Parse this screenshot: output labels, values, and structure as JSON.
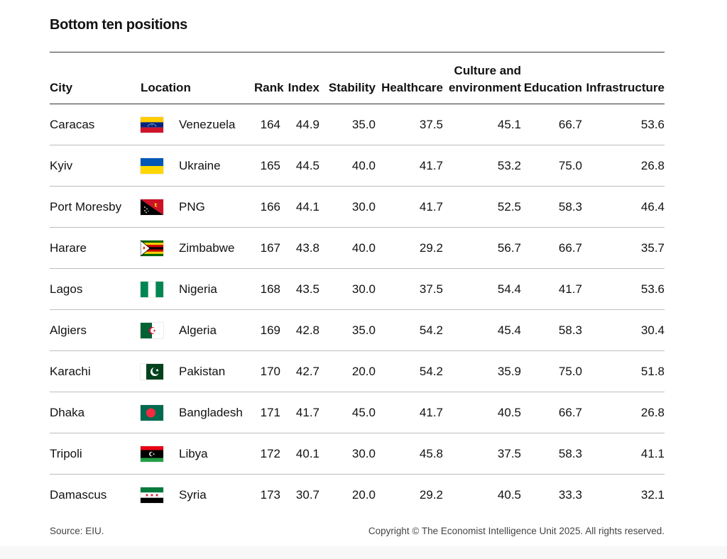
{
  "title": "Bottom ten positions",
  "headers": {
    "city": "City",
    "location": "Location",
    "rank": "Rank",
    "index": "Index",
    "stability": "Stability",
    "healthcare": "Healthcare",
    "culture_line1": "Culture and",
    "culture_line2": "environment",
    "education": "Education",
    "infrastructure": "Infrastructure"
  },
  "chart_data": {
    "type": "table",
    "title": "Bottom ten positions",
    "columns": [
      "City",
      "Location",
      "Rank",
      "Index",
      "Stability",
      "Healthcare",
      "Culture and environment",
      "Education",
      "Infrastructure"
    ],
    "rows": [
      {
        "city": "Caracas",
        "flag": "venezuela-flag-icon",
        "location": "Venezuela",
        "rank": "164",
        "index": "44.9",
        "stability": "35.0",
        "healthcare": "37.5",
        "culture": "45.1",
        "education": "66.7",
        "infrastructure": "53.6"
      },
      {
        "city": "Kyiv",
        "flag": "ukraine-flag-icon",
        "location": "Ukraine",
        "rank": "165",
        "index": "44.5",
        "stability": "40.0",
        "healthcare": "41.7",
        "culture": "53.2",
        "education": "75.0",
        "infrastructure": "26.8"
      },
      {
        "city": "Port Moresby",
        "flag": "png-flag-icon",
        "location": "PNG",
        "rank": "166",
        "index": "44.1",
        "stability": "30.0",
        "healthcare": "41.7",
        "culture": "52.5",
        "education": "58.3",
        "infrastructure": "46.4"
      },
      {
        "city": "Harare",
        "flag": "zimbabwe-flag-icon",
        "location": "Zimbabwe",
        "rank": "167",
        "index": "43.8",
        "stability": "40.0",
        "healthcare": "29.2",
        "culture": "56.7",
        "education": "66.7",
        "infrastructure": "35.7"
      },
      {
        "city": "Lagos",
        "flag": "nigeria-flag-icon",
        "location": "Nigeria",
        "rank": "168",
        "index": "43.5",
        "stability": "30.0",
        "healthcare": "37.5",
        "culture": "54.4",
        "education": "41.7",
        "infrastructure": "53.6"
      },
      {
        "city": "Algiers",
        "flag": "algeria-flag-icon",
        "location": "Algeria",
        "rank": "169",
        "index": "42.8",
        "stability": "35.0",
        "healthcare": "54.2",
        "culture": "45.4",
        "education": "58.3",
        "infrastructure": "30.4"
      },
      {
        "city": "Karachi",
        "flag": "pakistan-flag-icon",
        "location": "Pakistan",
        "rank": "170",
        "index": "42.7",
        "stability": "20.0",
        "healthcare": "54.2",
        "culture": "35.9",
        "education": "75.0",
        "infrastructure": "51.8"
      },
      {
        "city": "Dhaka",
        "flag": "bangladesh-flag-icon",
        "location": "Bangladesh",
        "rank": "171",
        "index": "41.7",
        "stability": "45.0",
        "healthcare": "41.7",
        "culture": "40.5",
        "education": "66.7",
        "infrastructure": "26.8"
      },
      {
        "city": "Tripoli",
        "flag": "libya-flag-icon",
        "location": "Libya",
        "rank": "172",
        "index": "40.1",
        "stability": "30.0",
        "healthcare": "45.8",
        "culture": "37.5",
        "education": "58.3",
        "infrastructure": "41.1"
      },
      {
        "city": "Damascus",
        "flag": "syria-flag-icon",
        "location": "Syria",
        "rank": "173",
        "index": "30.7",
        "stability": "20.0",
        "healthcare": "29.2",
        "culture": "40.5",
        "education": "33.3",
        "infrastructure": "32.1"
      }
    ]
  },
  "footer": {
    "source": "Source: EIU.",
    "copyright": "Copyright © The Economist Intelligence Unit 2025. All rights reserved."
  }
}
